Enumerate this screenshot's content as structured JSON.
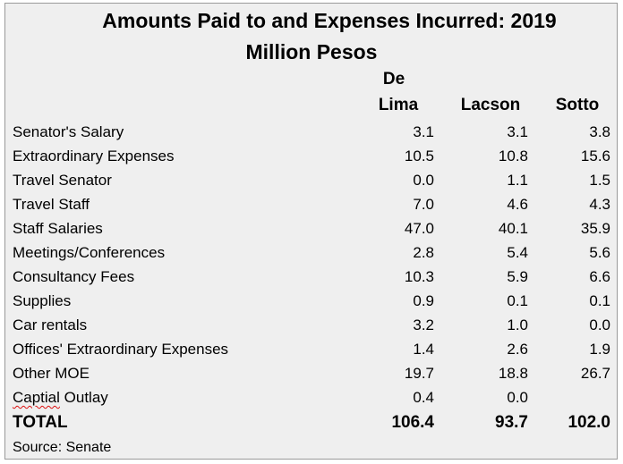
{
  "chart_data": {
    "type": "table",
    "title": "Amounts Paid to and Expenses Incurred: 2019",
    "subtitle": "Million Pesos",
    "columns": [
      {
        "line1": "De",
        "line2": "Lima"
      },
      {
        "line1": "",
        "line2": "Lacson"
      },
      {
        "line1": "",
        "line2": "Sotto"
      }
    ],
    "rows": [
      {
        "label": "Senator's Salary",
        "values": [
          "3.1",
          "3.1",
          "3.8"
        ]
      },
      {
        "label": "Extraordinary Expenses",
        "values": [
          "10.5",
          "10.8",
          "15.6"
        ]
      },
      {
        "label": "Travel Senator",
        "values": [
          "0.0",
          "1.1",
          "1.5"
        ]
      },
      {
        "label": "Travel Staff",
        "values": [
          "7.0",
          "4.6",
          "4.3"
        ]
      },
      {
        "label": "Staff Salaries",
        "values": [
          "47.0",
          "40.1",
          "35.9"
        ]
      },
      {
        "label": "Meetings/Conferences",
        "values": [
          "2.8",
          "5.4",
          "5.6"
        ]
      },
      {
        "label": "Consultancy Fees",
        "values": [
          "10.3",
          "5.9",
          "6.6"
        ]
      },
      {
        "label": "Supplies",
        "values": [
          "0.9",
          "0.1",
          "0.1"
        ]
      },
      {
        "label": "Car rentals",
        "values": [
          "3.2",
          "1.0",
          "0.0"
        ]
      },
      {
        "label": "Offices' Extraordinary Expenses",
        "values": [
          "1.4",
          "2.6",
          "1.9"
        ]
      },
      {
        "label": "Other MOE",
        "values": [
          "19.7",
          "18.8",
          "26.7"
        ]
      },
      {
        "label": "Captial Outlay",
        "values": [
          "0.4",
          "0.0",
          ""
        ]
      }
    ],
    "total": {
      "label": "TOTAL",
      "values": [
        "106.4",
        "93.7",
        "102.0"
      ]
    },
    "source": "Source: Senate"
  }
}
